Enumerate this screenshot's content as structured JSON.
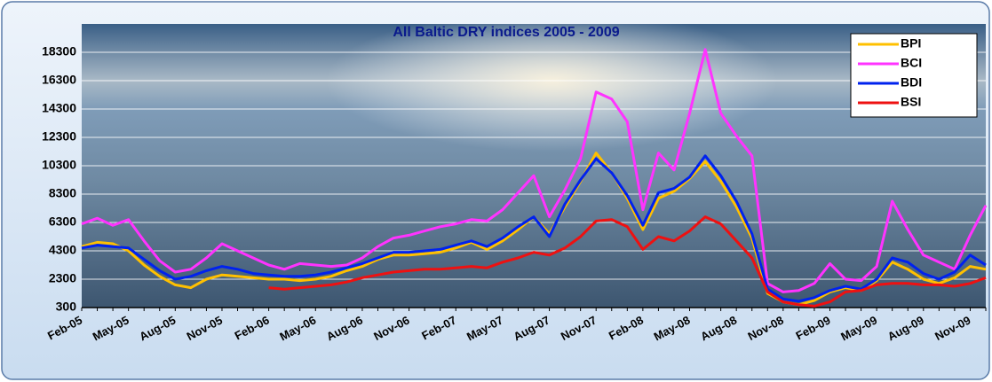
{
  "chart_data": {
    "type": "line",
    "title": "All Baltic DRY indices 2005 - 2009",
    "categories": [
      "Feb-05",
      null,
      null,
      "May-05",
      null,
      null,
      "Aug-05",
      null,
      null,
      "Nov-05",
      null,
      null,
      "Feb-06",
      null,
      null,
      "May-06",
      null,
      null,
      "Aug-06",
      null,
      null,
      "Nov-06",
      null,
      null,
      "Feb-07",
      null,
      null,
      "May-07",
      null,
      null,
      "Aug-07",
      null,
      null,
      "Nov-07",
      null,
      null,
      "Feb-08",
      null,
      null,
      "May-08",
      null,
      null,
      "Aug-08",
      null,
      null,
      "Nov-08",
      null,
      null,
      "Feb-09",
      null,
      null,
      "May-09",
      null,
      null,
      "Aug-09",
      null,
      null,
      "Nov-09",
      null
    ],
    "series": [
      {
        "name": "BPI",
        "color": "#ffc000",
        "values": [
          4600,
          4900,
          4800,
          4300,
          3300,
          2500,
          1900,
          1700,
          2300,
          2600,
          2500,
          2400,
          2300,
          2300,
          2200,
          2300,
          2500,
          2900,
          3200,
          3700,
          4000,
          4000,
          4100,
          4200,
          4500,
          4900,
          4400,
          5000,
          5800,
          6700,
          5500,
          7400,
          9200,
          11200,
          9800,
          8000,
          5800,
          8000,
          8500,
          9400,
          10600,
          9200,
          7400,
          5200,
          1300,
          700,
          500,
          800,
          1400,
          1700,
          1500,
          2200,
          3500,
          3000,
          2300,
          2000,
          2400,
          3200,
          3000
        ]
      },
      {
        "name": "BCI",
        "color": "#ff33ff",
        "values": [
          6200,
          6600,
          6100,
          6500,
          5000,
          3600,
          2800,
          3000,
          3800,
          4800,
          4300,
          3800,
          3300,
          3000,
          3400,
          3300,
          3200,
          3300,
          3800,
          4600,
          5200,
          5400,
          5700,
          6000,
          6200,
          6500,
          6400,
          7200,
          8400,
          9600,
          6700,
          8600,
          10800,
          15500,
          15000,
          13400,
          7200,
          11200,
          10000,
          14000,
          18500,
          14000,
          12400,
          11000,
          2000,
          1400,
          1500,
          2000,
          3400,
          2300,
          2200,
          3200,
          7800,
          5800,
          4000,
          3500,
          3000,
          5400,
          7500
        ]
      },
      {
        "name": "BDI",
        "color": "#0022ee",
        "values": [
          4500,
          4700,
          4600,
          4500,
          3700,
          2900,
          2300,
          2500,
          2900,
          3200,
          3000,
          2700,
          2600,
          2500,
          2500,
          2600,
          2800,
          3100,
          3400,
          3800,
          4200,
          4200,
          4300,
          4400,
          4700,
          5000,
          4600,
          5200,
          6000,
          6700,
          5300,
          7600,
          9300,
          10800,
          9800,
          8200,
          6100,
          8400,
          8700,
          9500,
          11000,
          9600,
          7800,
          5500,
          1600,
          900,
          750,
          1000,
          1500,
          1800,
          1600,
          2300,
          3800,
          3500,
          2700,
          2300,
          2800,
          4000,
          3300
        ]
      },
      {
        "name": "BSI",
        "color": "#ee1111",
        "values": [
          null,
          null,
          null,
          null,
          null,
          null,
          null,
          null,
          null,
          null,
          null,
          null,
          1700,
          1600,
          1700,
          1800,
          1900,
          2100,
          2400,
          2600,
          2800,
          2900,
          3000,
          3000,
          3100,
          3200,
          3100,
          3500,
          3800,
          4200,
          4000,
          4500,
          5300,
          6400,
          6500,
          6000,
          4400,
          5300,
          5000,
          5700,
          6700,
          6200,
          5000,
          3800,
          1400,
          700,
          500,
          400,
          700,
          1400,
          1500,
          1900,
          2000,
          2000,
          1900,
          1900,
          1800,
          2000,
          2400
        ]
      }
    ],
    "ylim": [
      300,
      20300
    ],
    "yticks": [
      300,
      2300,
      4300,
      6300,
      8300,
      10300,
      12300,
      14300,
      16300,
      18300
    ],
    "grid": true,
    "legend": "upper right"
  }
}
